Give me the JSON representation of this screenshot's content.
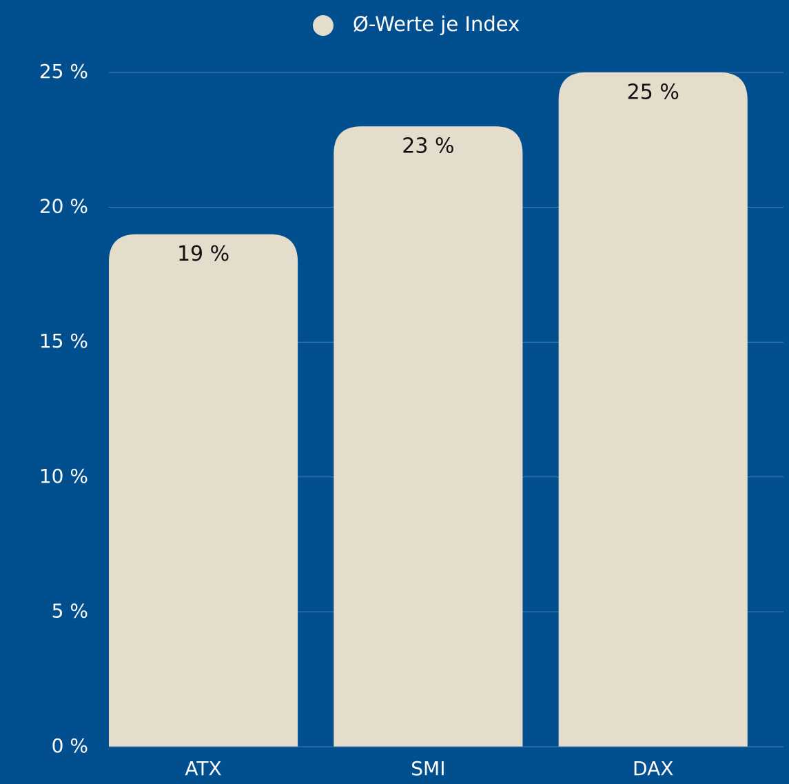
{
  "chart_data": {
    "type": "bar",
    "categories": [
      "ATX",
      "SMI",
      "DAX"
    ],
    "series": [
      {
        "name": "Ø-Werte je Index",
        "color": "#e5ddcc",
        "values": [
          19,
          23,
          25
        ],
        "value_labels": [
          "19 %",
          "23 %",
          "25 %"
        ]
      }
    ],
    "ylim": [
      0,
      25
    ],
    "yticks": [
      {
        "value": 0,
        "label": "0 %"
      },
      {
        "value": 5,
        "label": "5 %"
      },
      {
        "value": 10,
        "label": "10 %"
      },
      {
        "value": 15,
        "label": "15 %"
      },
      {
        "value": 20,
        "label": "20 %"
      },
      {
        "value": 25,
        "label": "25 %"
      }
    ],
    "grid": true,
    "legend": "top"
  }
}
